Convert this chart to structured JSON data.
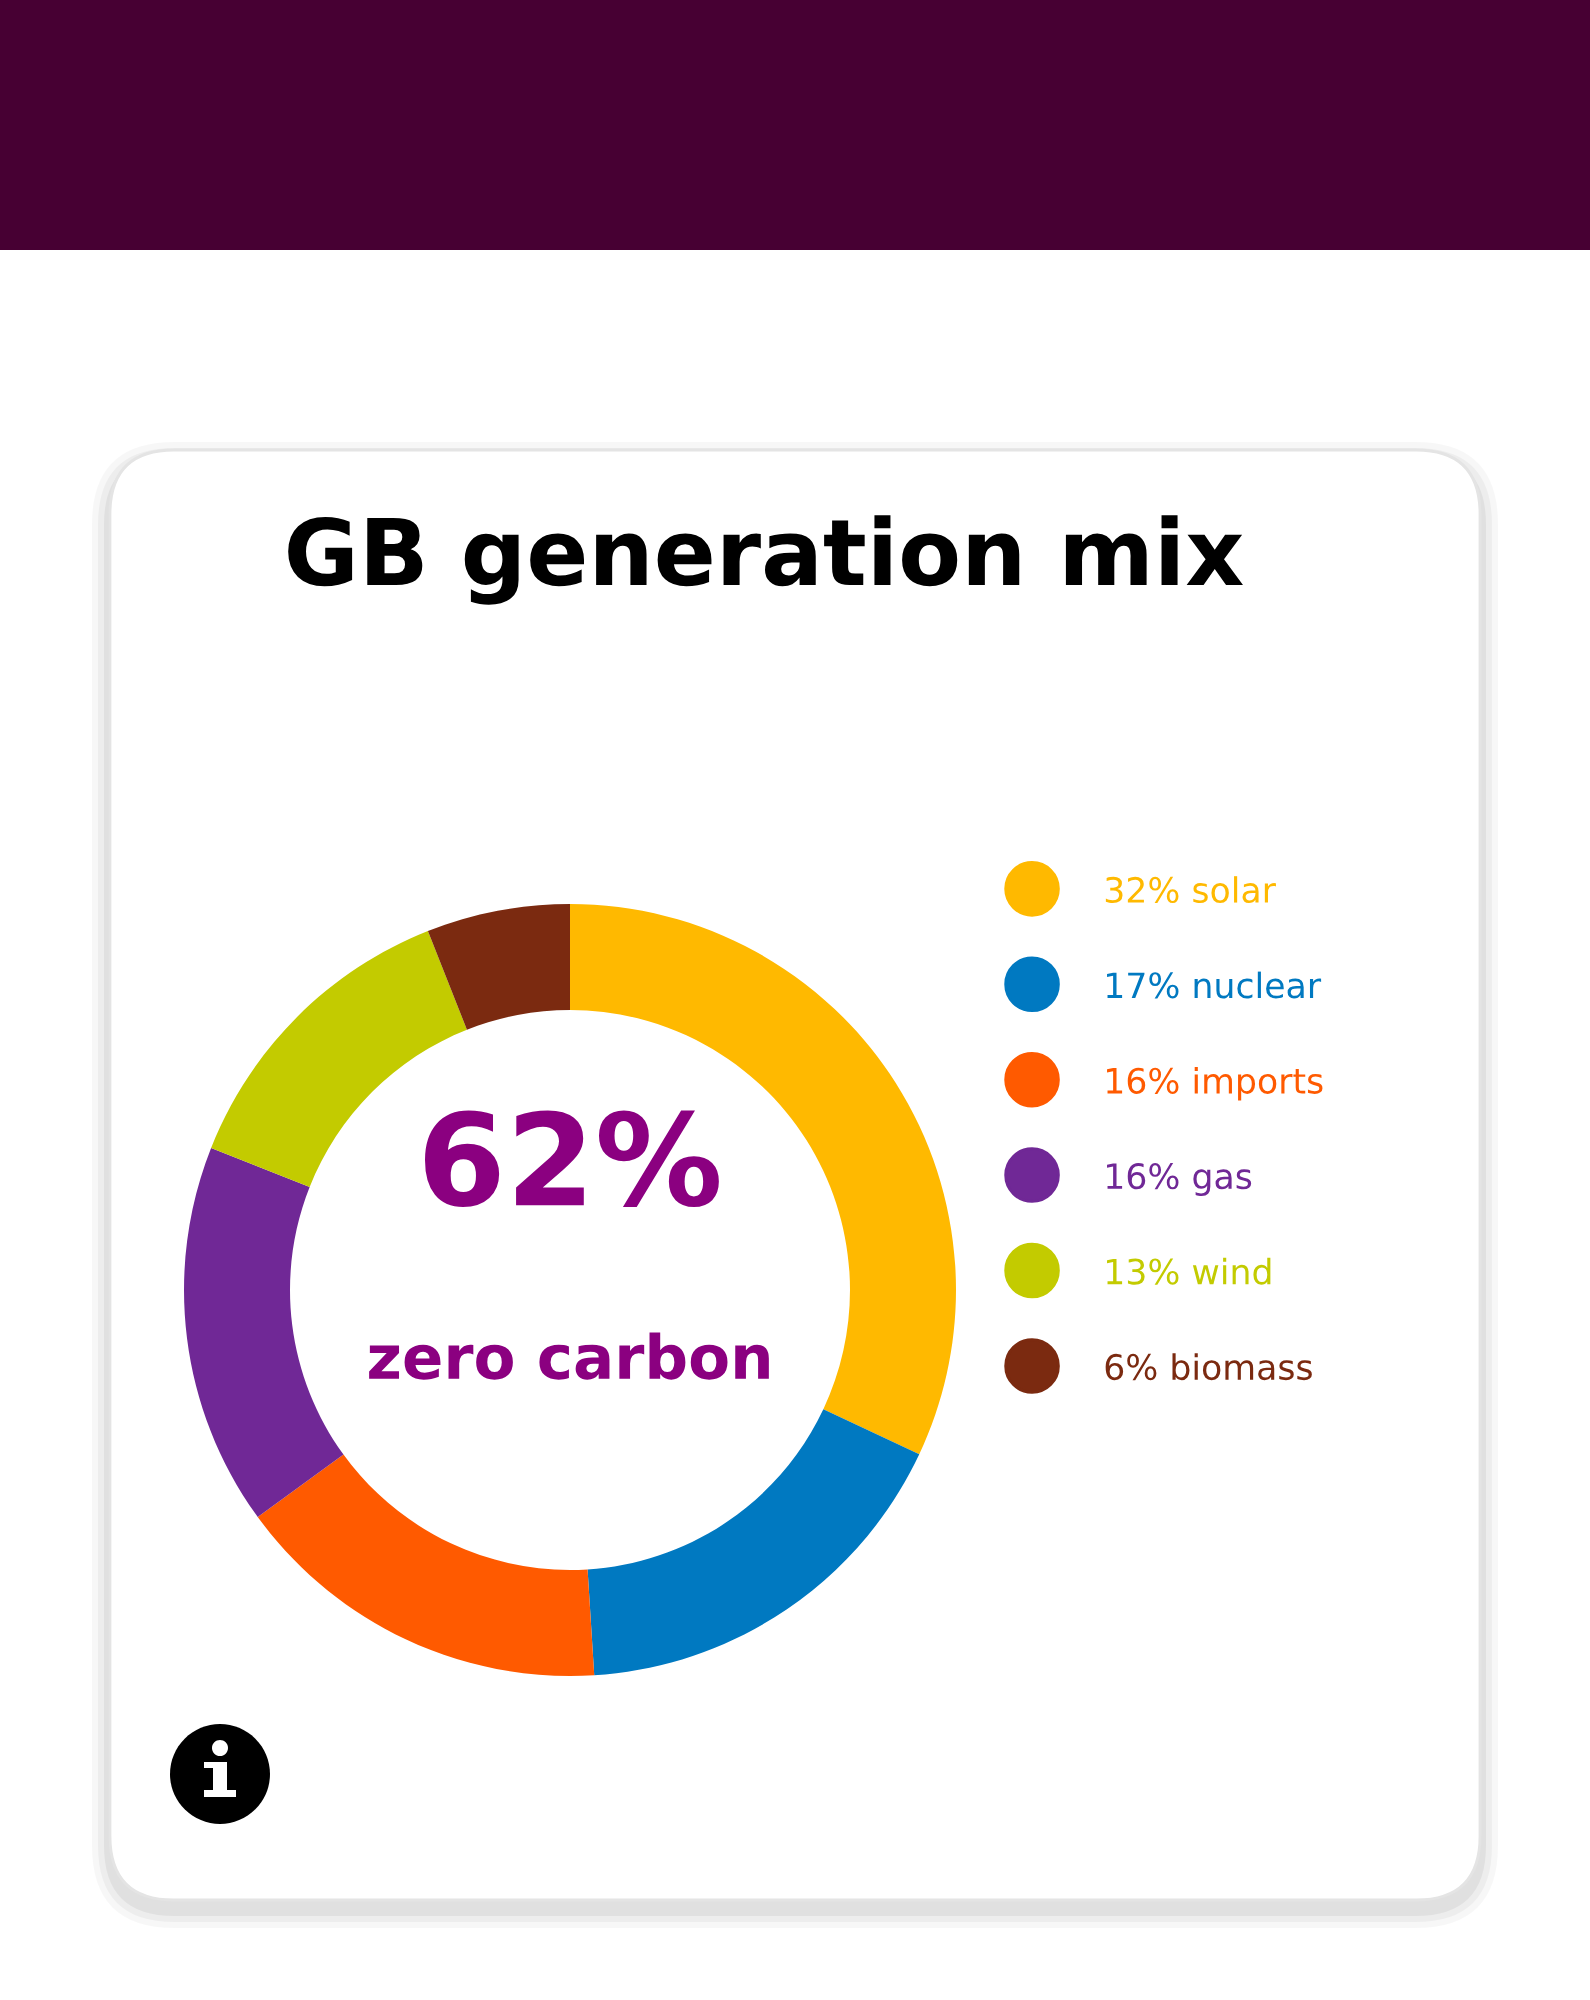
{
  "chart_data": {
    "type": "donut",
    "title": "GB generation mix",
    "categories": [
      "solar",
      "nuclear",
      "imports",
      "gas",
      "wind",
      "biomass"
    ],
    "values": [
      32,
      17,
      16,
      16,
      13,
      6
    ],
    "colors": [
      "#ffb900",
      "#0079c1",
      "#ff5a00",
      "#702896",
      "#c3cb00",
      "#7b2a10"
    ],
    "value_labels": [
      "32%",
      "17%",
      "16%",
      "16%",
      "13%",
      "6%"
    ],
    "legend": "right",
    "annotations": [
      "62%",
      "zero carbon"
    ]
  }
}
